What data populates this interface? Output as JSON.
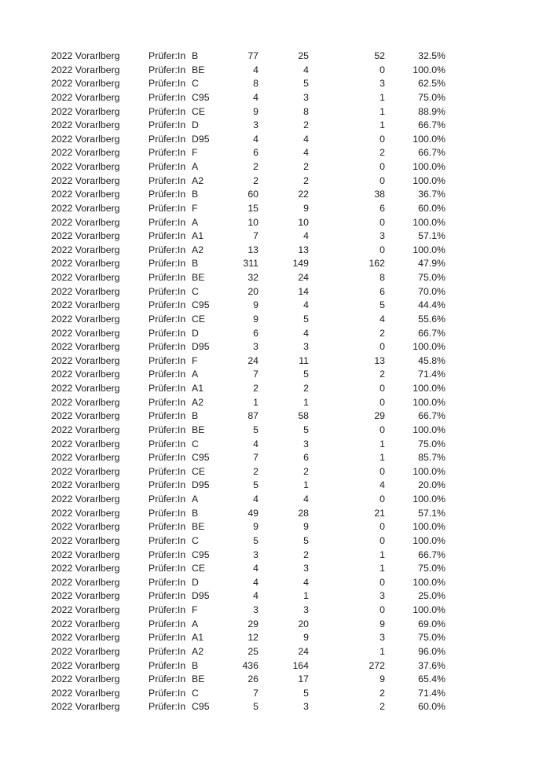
{
  "table": {
    "rows": [
      [
        "2022 Vorarlberg",
        "Prüfer:In",
        "B",
        "77",
        "25",
        "52",
        "32.5%"
      ],
      [
        "2022 Vorarlberg",
        "Prüfer:In",
        "BE",
        "4",
        "4",
        "0",
        "100.0%"
      ],
      [
        "2022 Vorarlberg",
        "Prüfer:In",
        "C",
        "8",
        "5",
        "3",
        "62.5%"
      ],
      [
        "2022 Vorarlberg",
        "Prüfer:In",
        "C95",
        "4",
        "3",
        "1",
        "75.0%"
      ],
      [
        "2022 Vorarlberg",
        "Prüfer:In",
        "CE",
        "9",
        "8",
        "1",
        "88.9%"
      ],
      [
        "2022 Vorarlberg",
        "Prüfer:In",
        "D",
        "3",
        "2",
        "1",
        "66.7%"
      ],
      [
        "2022 Vorarlberg",
        "Prüfer:In",
        "D95",
        "4",
        "4",
        "0",
        "100.0%"
      ],
      [
        "2022 Vorarlberg",
        "Prüfer:In",
        "F",
        "6",
        "4",
        "2",
        "66.7%"
      ],
      [
        "2022 Vorarlberg",
        "Prüfer:In",
        "A",
        "2",
        "2",
        "0",
        "100.0%"
      ],
      [
        "2022 Vorarlberg",
        "Prüfer:In",
        "A2",
        "2",
        "2",
        "0",
        "100.0%"
      ],
      [
        "2022 Vorarlberg",
        "Prüfer:In",
        "B",
        "60",
        "22",
        "38",
        "36.7%"
      ],
      [
        "2022 Vorarlberg",
        "Prüfer:In",
        "F",
        "15",
        "9",
        "6",
        "60.0%"
      ],
      [
        "2022 Vorarlberg",
        "Prüfer:In",
        "A",
        "10",
        "10",
        "0",
        "100.0%"
      ],
      [
        "2022 Vorarlberg",
        "Prüfer:In",
        "A1",
        "7",
        "4",
        "3",
        "57.1%"
      ],
      [
        "2022 Vorarlberg",
        "Prüfer:In",
        "A2",
        "13",
        "13",
        "0",
        "100.0%"
      ],
      [
        "2022 Vorarlberg",
        "Prüfer:In",
        "B",
        "311",
        "149",
        "162",
        "47.9%"
      ],
      [
        "2022 Vorarlberg",
        "Prüfer:In",
        "BE",
        "32",
        "24",
        "8",
        "75.0%"
      ],
      [
        "2022 Vorarlberg",
        "Prüfer:In",
        "C",
        "20",
        "14",
        "6",
        "70.0%"
      ],
      [
        "2022 Vorarlberg",
        "Prüfer:In",
        "C95",
        "9",
        "4",
        "5",
        "44.4%"
      ],
      [
        "2022 Vorarlberg",
        "Prüfer:In",
        "CE",
        "9",
        "5",
        "4",
        "55.6%"
      ],
      [
        "2022 Vorarlberg",
        "Prüfer:In",
        "D",
        "6",
        "4",
        "2",
        "66.7%"
      ],
      [
        "2022 Vorarlberg",
        "Prüfer:In",
        "D95",
        "3",
        "3",
        "0",
        "100.0%"
      ],
      [
        "2022 Vorarlberg",
        "Prüfer:In",
        "F",
        "24",
        "11",
        "13",
        "45.8%"
      ],
      [
        "2022 Vorarlberg",
        "Prüfer:In",
        "A",
        "7",
        "5",
        "2",
        "71.4%"
      ],
      [
        "2022 Vorarlberg",
        "Prüfer:In",
        "A1",
        "2",
        "2",
        "0",
        "100.0%"
      ],
      [
        "2022 Vorarlberg",
        "Prüfer:In",
        "A2",
        "1",
        "1",
        "0",
        "100.0%"
      ],
      [
        "2022 Vorarlberg",
        "Prüfer:In",
        "B",
        "87",
        "58",
        "29",
        "66.7%"
      ],
      [
        "2022 Vorarlberg",
        "Prüfer:In",
        "BE",
        "5",
        "5",
        "0",
        "100.0%"
      ],
      [
        "2022 Vorarlberg",
        "Prüfer:In",
        "C",
        "4",
        "3",
        "1",
        "75.0%"
      ],
      [
        "2022 Vorarlberg",
        "Prüfer:In",
        "C95",
        "7",
        "6",
        "1",
        "85.7%"
      ],
      [
        "2022 Vorarlberg",
        "Prüfer:In",
        "CE",
        "2",
        "2",
        "0",
        "100.0%"
      ],
      [
        "2022 Vorarlberg",
        "Prüfer:In",
        "D95",
        "5",
        "1",
        "4",
        "20.0%"
      ],
      [
        "2022 Vorarlberg",
        "Prüfer:In",
        "A",
        "4",
        "4",
        "0",
        "100.0%"
      ],
      [
        "2022 Vorarlberg",
        "Prüfer:In",
        "B",
        "49",
        "28",
        "21",
        "57.1%"
      ],
      [
        "2022 Vorarlberg",
        "Prüfer:In",
        "BE",
        "9",
        "9",
        "0",
        "100.0%"
      ],
      [
        "2022 Vorarlberg",
        "Prüfer:In",
        "C",
        "5",
        "5",
        "0",
        "100.0%"
      ],
      [
        "2022 Vorarlberg",
        "Prüfer:In",
        "C95",
        "3",
        "2",
        "1",
        "66.7%"
      ],
      [
        "2022 Vorarlberg",
        "Prüfer:In",
        "CE",
        "4",
        "3",
        "1",
        "75.0%"
      ],
      [
        "2022 Vorarlberg",
        "Prüfer:In",
        "D",
        "4",
        "4",
        "0",
        "100.0%"
      ],
      [
        "2022 Vorarlberg",
        "Prüfer:In",
        "D95",
        "4",
        "1",
        "3",
        "25.0%"
      ],
      [
        "2022 Vorarlberg",
        "Prüfer:In",
        "F",
        "3",
        "3",
        "0",
        "100.0%"
      ],
      [
        "2022 Vorarlberg",
        "Prüfer:In",
        "A",
        "29",
        "20",
        "9",
        "69.0%"
      ],
      [
        "2022 Vorarlberg",
        "Prüfer:In",
        "A1",
        "12",
        "9",
        "3",
        "75.0%"
      ],
      [
        "2022 Vorarlberg",
        "Prüfer:In",
        "A2",
        "25",
        "24",
        "1",
        "96.0%"
      ],
      [
        "2022 Vorarlberg",
        "Prüfer:In",
        "B",
        "436",
        "164",
        "272",
        "37.6%"
      ],
      [
        "2022 Vorarlberg",
        "Prüfer:In",
        "BE",
        "26",
        "17",
        "9",
        "65.4%"
      ],
      [
        "2022 Vorarlberg",
        "Prüfer:In",
        "C",
        "7",
        "5",
        "2",
        "71.4%"
      ],
      [
        "2022 Vorarlberg",
        "Prüfer:In",
        "C95",
        "5",
        "3",
        "2",
        "60.0%"
      ]
    ]
  }
}
